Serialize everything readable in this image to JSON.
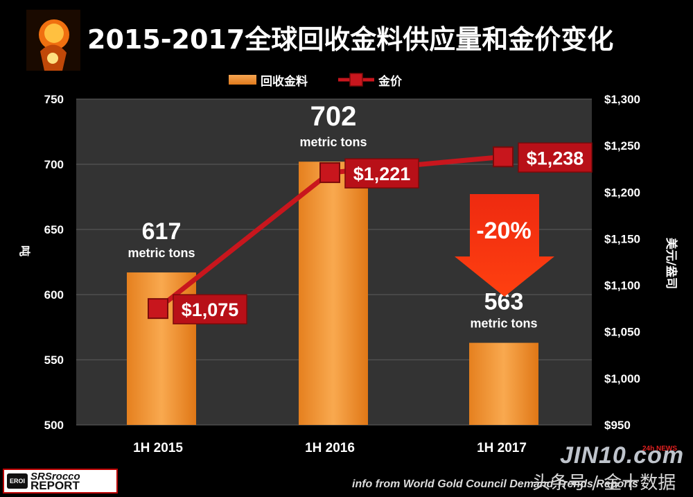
{
  "header": {
    "title": "2015-2017全球回收金料供应量和金价变化"
  },
  "legend": {
    "bar_label": "回收金料",
    "line_label": "金价"
  },
  "colors": {
    "bar": "#f39a3e",
    "line": "#c8161d",
    "plot_bg": "#333333",
    "grid": "#5a5a5a"
  },
  "chart_data": {
    "type": "bar",
    "title": "2015-2017全球回收金料供应量和金价变化",
    "categories": [
      "1H 2015",
      "1H 2016",
      "1H 2017"
    ],
    "ylabel": "吨",
    "y2label": "美元/盎司",
    "ylim": [
      500,
      750
    ],
    "y2lim": [
      950,
      1300
    ],
    "yticks": [
      500,
      550,
      600,
      650,
      700,
      750
    ],
    "y2ticks": [
      "$950",
      "$1,000",
      "$1,050",
      "$1,100",
      "$1,150",
      "$1,200",
      "$1,250",
      "$1,300"
    ],
    "y2tick_values": [
      950,
      1000,
      1050,
      1100,
      1150,
      1200,
      1250,
      1300
    ],
    "series": [
      {
        "name": "回收金料",
        "type": "bar",
        "values": [
          617,
          702,
          563
        ],
        "value_labels": [
          "617",
          "702",
          "563"
        ],
        "unit_label": "metric tons"
      },
      {
        "name": "金价",
        "type": "line",
        "axis": "right",
        "values": [
          1075,
          1221,
          1238
        ],
        "value_labels": [
          "$1,075",
          "$1,221",
          "$1,238"
        ]
      }
    ],
    "annotations": [
      {
        "text": "-20%",
        "category": "1H 2017"
      }
    ],
    "grid": true,
    "legend_position": "top-center"
  },
  "footer": {
    "source": "info from World Gold Council Demand Trends Reports",
    "brand": "JIN10.com",
    "brand_sub": "24h NEWS",
    "watermark": "头条号 / 金十数据",
    "logo_badge": "EROI",
    "logo_line1": "SRSrocco",
    "logo_line2": "REPORT"
  }
}
